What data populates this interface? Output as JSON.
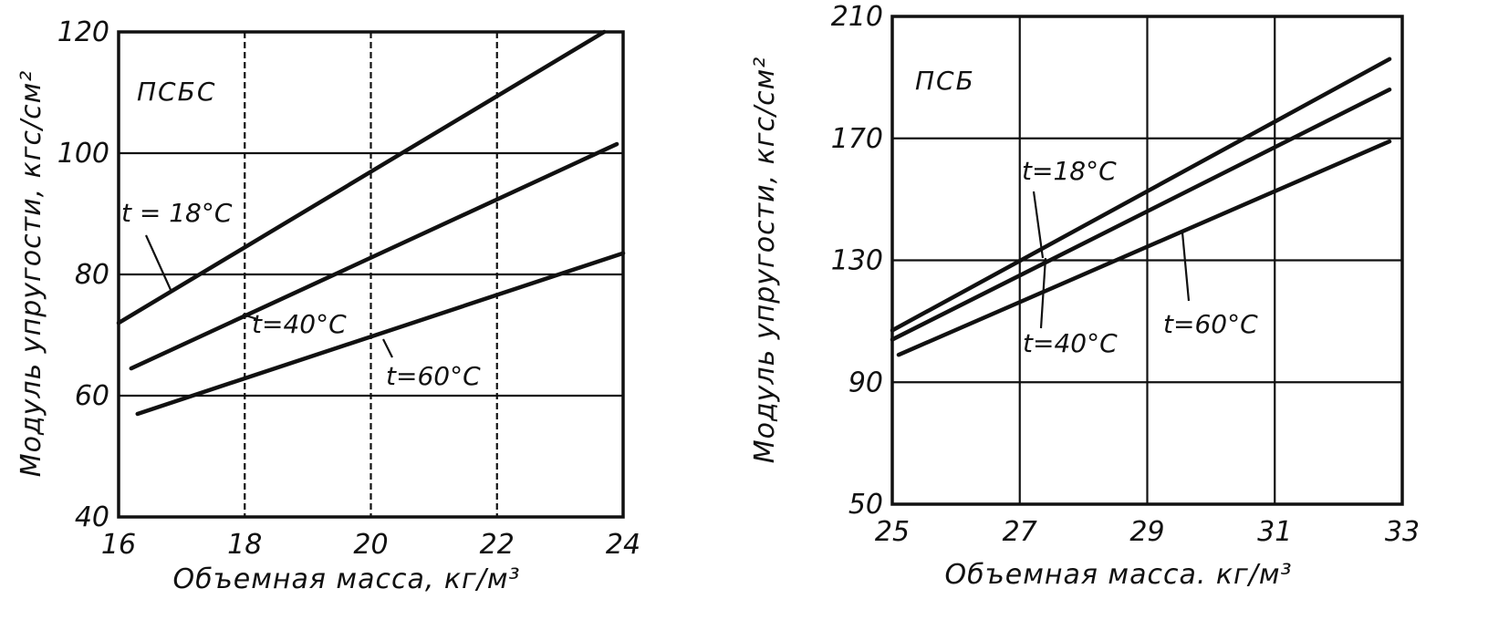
{
  "chart_data": [
    {
      "type": "line",
      "annotation": "ПСБС",
      "xlabel": "Объемная масса, кг/м³",
      "ylabel": "Модуль упругости, кгс/см²",
      "xlim": [
        16,
        24
      ],
      "ylim": [
        40,
        120
      ],
      "xticks": [
        "16",
        "18",
        "20",
        "22",
        "24"
      ],
      "yticks": [
        "40",
        "60",
        "80",
        "100",
        "120"
      ],
      "grid": true,
      "series": [
        {
          "name": "t = 18°C",
          "x": [
            16,
            23.7
          ],
          "y": [
            72,
            120
          ]
        },
        {
          "name": "t=40°C",
          "x": [
            16.2,
            23.9
          ],
          "y": [
            64.5,
            101.5
          ]
        },
        {
          "name": "t=60°C",
          "x": [
            16.3,
            24
          ],
          "y": [
            57,
            83.5
          ]
        }
      ]
    },
    {
      "type": "line",
      "annotation": "ПСБ",
      "xlabel": "Объемная масса. кг/м³",
      "ylabel": "Модуль упругости, кгс/см²",
      "xlim": [
        25,
        33
      ],
      "ylim": [
        50,
        210
      ],
      "xticks": [
        "25",
        "27",
        "29",
        "31",
        "33"
      ],
      "yticks": [
        "50",
        "90",
        "130",
        "170",
        "210"
      ],
      "grid": true,
      "series": [
        {
          "name": "t=18°C",
          "x": [
            25,
            32.8
          ],
          "y": [
            107,
            196
          ]
        },
        {
          "name": "t=40°C",
          "x": [
            25,
            32.8
          ],
          "y": [
            104,
            186
          ]
        },
        {
          "name": "t=60°C",
          "x": [
            25.1,
            32.8
          ],
          "y": [
            99,
            169
          ]
        }
      ]
    }
  ]
}
